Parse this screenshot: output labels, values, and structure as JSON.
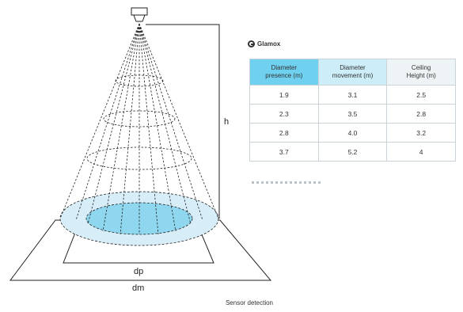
{
  "brand": {
    "name": "Glamox",
    "icon": "glamox-logo-icon"
  },
  "diagram": {
    "height_label": "h",
    "presence_label": "dp",
    "movement_label": "dm",
    "sensor_icon": "ceiling-sensor-icon",
    "colors": {
      "outer_zone": "#d7eef8",
      "inner_zone": "#8fd6ef",
      "lines": "#222222"
    }
  },
  "table": {
    "headers": [
      "Diameter\npresence (m)",
      "Diameter\nmovement (m)",
      "Ceiling\nHeight (m)"
    ],
    "rows": [
      [
        "1.9",
        "3.1",
        "2.5"
      ],
      [
        "2.3",
        "3.5",
        "2.8"
      ],
      [
        "2.8",
        "4.0",
        "3.2"
      ],
      [
        "3.7",
        "5.2",
        "4"
      ]
    ],
    "header_colors": [
      "#6fd0ef",
      "#cdeef8",
      "#eef4f6"
    ]
  },
  "caption": "Sensor detection"
}
